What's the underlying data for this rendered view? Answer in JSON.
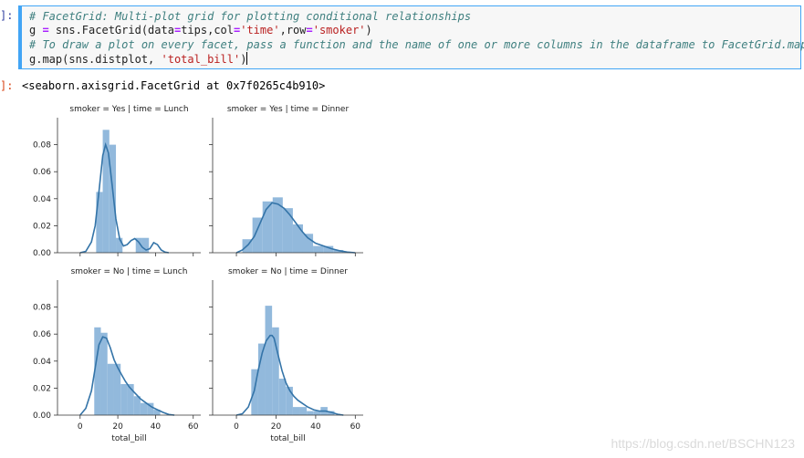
{
  "prompts": {
    "input": "]:",
    "output": "]:"
  },
  "cell": {
    "line1_comment": "# FacetGrid: Multi-plot grid for plotting conditional relationships",
    "line2_a": "g ",
    "line2_eq": "=",
    "line2_b": " sns.FacetGrid(data",
    "line2_eq2": "=",
    "line2_c": "tips,col",
    "line2_eq3": "=",
    "line2_str1": "'time'",
    "line2_d": ",row",
    "line2_eq4": "=",
    "line2_str2": "'smoker'",
    "line2_e": ")",
    "line3_comment": "# To draw a plot on every facet, pass a function and the name of one or more columns in the dataframe to FacetGrid.map()",
    "line4_a": "g.map(sns.distplot, ",
    "line4_str": "'total_bill'",
    "line4_b": ")"
  },
  "output_text": "<seaborn.axisgrid.FacetGrid at 0x7f0265c4b910>",
  "watermark": "https://blog.csdn.net/BSCHN123",
  "colors": {
    "bar": "#92b9dc",
    "kde": "#3474a8",
    "axis": "#333333"
  },
  "chart_data": [
    {
      "type": "bar",
      "title": "smoker = Yes | time = Lunch",
      "xlabel": "",
      "ylim": [
        0,
        0.1
      ],
      "xlim": [
        -12,
        64
      ],
      "yticks": [
        "0.00",
        "0.02",
        "0.04",
        "0.06",
        "0.08"
      ],
      "xticks": [],
      "bin_edges": [
        8.5,
        12.0,
        15.5,
        19.0,
        22.5,
        26.0,
        29.5,
        33.0,
        36.5,
        40.0,
        43.5
      ],
      "values": [
        0.045,
        0.091,
        0.08,
        0.011,
        0.0,
        0.0,
        0.011,
        0.011,
        0.0,
        0.0
      ],
      "kde_x": [
        0,
        3,
        6,
        8,
        10,
        12,
        13.5,
        15,
        17,
        19,
        21,
        23,
        25,
        27,
        29,
        31,
        33,
        35,
        37,
        39,
        41,
        43,
        45,
        47
      ],
      "kde_y": [
        0.0,
        0.001,
        0.008,
        0.02,
        0.045,
        0.072,
        0.08,
        0.074,
        0.05,
        0.025,
        0.01,
        0.005,
        0.006,
        0.009,
        0.0105,
        0.008,
        0.004,
        0.002,
        0.003,
        0.0075,
        0.006,
        0.002,
        0.0005,
        0.0
      ]
    },
    {
      "type": "bar",
      "title": "smoker = Yes | time = Dinner",
      "xlabel": "",
      "ylim": [
        0,
        0.1
      ],
      "xlim": [
        -12,
        64
      ],
      "yticks": [],
      "xticks": [],
      "bin_edges": [
        3.0,
        8.1,
        13.2,
        18.3,
        23.4,
        28.5,
        33.6,
        38.7,
        43.8,
        48.9,
        54.0
      ],
      "values": [
        0.01,
        0.026,
        0.038,
        0.041,
        0.033,
        0.021,
        0.014,
        0.005,
        0.005,
        0.002
      ],
      "kde_x": [
        0,
        3,
        6,
        9,
        12,
        15,
        18,
        21,
        24,
        27,
        30,
        33,
        36,
        40,
        44,
        48,
        52,
        56,
        60
      ],
      "kde_y": [
        0.0,
        0.002,
        0.006,
        0.012,
        0.022,
        0.032,
        0.037,
        0.036,
        0.033,
        0.028,
        0.022,
        0.016,
        0.011,
        0.007,
        0.005,
        0.003,
        0.0015,
        0.0005,
        0.0
      ]
    },
    {
      "type": "bar",
      "title": "smoker = No | time = Lunch",
      "xlabel": "total_bill",
      "ylim": [
        0,
        0.1
      ],
      "xlim": [
        -12,
        64
      ],
      "yticks": [
        "0.00",
        "0.02",
        "0.04",
        "0.06",
        "0.08"
      ],
      "xticks": [
        "0",
        "20",
        "40",
        "60"
      ],
      "bin_edges": [
        7.5,
        11.0,
        14.5,
        18.0,
        21.5,
        25.0,
        28.5,
        32.0,
        35.5,
        39.0,
        42.5
      ],
      "values": [
        0.065,
        0.061,
        0.038,
        0.038,
        0.023,
        0.023,
        0.014,
        0.009,
        0.009,
        0.004
      ],
      "kde_x": [
        0,
        3,
        6,
        8,
        10,
        12,
        14,
        16,
        18,
        20,
        22,
        24,
        26,
        28,
        30,
        32,
        35,
        38,
        41,
        44,
        47,
        50
      ],
      "kde_y": [
        0.0,
        0.005,
        0.018,
        0.035,
        0.052,
        0.058,
        0.057,
        0.05,
        0.041,
        0.035,
        0.03,
        0.025,
        0.021,
        0.018,
        0.015,
        0.012,
        0.009,
        0.006,
        0.004,
        0.002,
        0.0005,
        0.0
      ]
    },
    {
      "type": "bar",
      "title": "smoker = No | time = Dinner",
      "xlabel": "total_bill",
      "ylim": [
        0,
        0.1
      ],
      "xlim": [
        -12,
        64
      ],
      "yticks": [],
      "xticks": [
        "0",
        "20",
        "40",
        "60"
      ],
      "bin_edges": [
        7.5,
        11.0,
        14.5,
        18.0,
        21.5,
        25.0,
        28.5,
        32.0,
        35.5,
        39.0,
        42.5,
        46.0,
        49.5
      ],
      "values": [
        0.034,
        0.053,
        0.081,
        0.065,
        0.027,
        0.021,
        0.006,
        0.006,
        0.003,
        0.003,
        0.006,
        0.003
      ],
      "kde_x": [
        0,
        3,
        6,
        9,
        11,
        13,
        15,
        17,
        18,
        19,
        21,
        23,
        25,
        27,
        29,
        31,
        33,
        36,
        39,
        42,
        45,
        48,
        51,
        54
      ],
      "kde_y": [
        0.0,
        0.001,
        0.006,
        0.018,
        0.033,
        0.046,
        0.055,
        0.059,
        0.059,
        0.057,
        0.045,
        0.033,
        0.024,
        0.018,
        0.014,
        0.011,
        0.009,
        0.006,
        0.004,
        0.003,
        0.003,
        0.002,
        0.0007,
        0.0
      ]
    }
  ]
}
